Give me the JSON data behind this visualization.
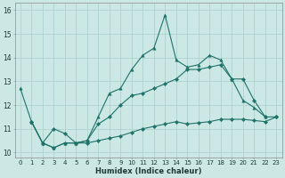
{
  "xlabel": "Humidex (Indice chaleur)",
  "xlim": [
    -0.5,
    23.5
  ],
  "ylim": [
    9.8,
    16.3
  ],
  "yticks": [
    10,
    11,
    12,
    13,
    14,
    15,
    16
  ],
  "xticks": [
    0,
    1,
    2,
    3,
    4,
    5,
    6,
    7,
    8,
    9,
    10,
    11,
    12,
    13,
    14,
    15,
    16,
    17,
    18,
    19,
    20,
    21,
    22,
    23
  ],
  "bg_color": "#cce8e5",
  "grid_color": "#aacfcc",
  "line_color": "#1e7268",
  "line1_x": [
    0,
    1,
    2,
    3,
    4,
    5,
    6,
    7,
    8,
    9,
    10,
    11,
    12,
    13,
    14,
    15,
    16,
    17,
    18,
    19,
    20,
    21,
    22
  ],
  "line1_y": [
    12.7,
    11.3,
    10.4,
    10.2,
    10.4,
    10.4,
    10.5,
    11.5,
    12.5,
    12.7,
    13.5,
    14.1,
    14.4,
    15.8,
    13.9,
    13.6,
    13.7,
    14.1,
    13.9,
    13.1,
    12.2,
    11.9,
    11.5
  ],
  "line2_x": [
    1,
    2,
    3,
    4,
    5,
    6,
    7,
    8,
    9,
    10,
    11,
    12,
    13,
    14,
    15,
    16,
    17,
    18,
    19,
    20,
    21,
    22,
    23
  ],
  "line2_y": [
    11.3,
    10.4,
    11.0,
    10.8,
    10.4,
    10.5,
    11.2,
    11.5,
    12.0,
    12.4,
    12.5,
    12.7,
    12.9,
    13.1,
    13.5,
    13.5,
    13.6,
    13.7,
    13.1,
    13.1,
    12.2,
    11.5,
    11.5
  ],
  "line3_x": [
    1,
    2,
    3,
    4,
    5,
    6,
    7,
    8,
    9,
    10,
    11,
    12,
    13,
    14,
    15,
    16,
    17,
    18,
    19,
    20,
    21,
    22,
    23
  ],
  "line3_y": [
    11.3,
    10.4,
    10.2,
    10.4,
    10.4,
    10.4,
    10.5,
    10.6,
    10.7,
    10.85,
    11.0,
    11.1,
    11.2,
    11.3,
    11.2,
    11.25,
    11.3,
    11.4,
    11.4,
    11.4,
    11.35,
    11.3,
    11.5
  ]
}
